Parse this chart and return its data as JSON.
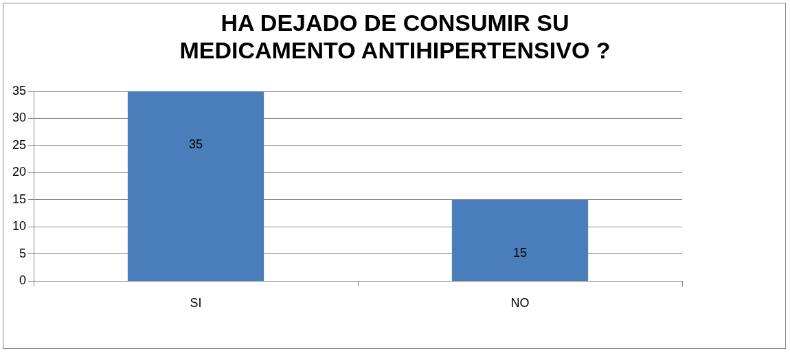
{
  "chart_data": {
    "type": "bar",
    "title": "HA DEJADO DE CONSUMIR SU MEDICAMENTO ANTIHIPERTENSIVO ?",
    "categories": [
      "SI",
      "NO"
    ],
    "values": [
      35,
      15
    ],
    "color": "#4a7ebb",
    "ylim": [
      0,
      35
    ],
    "yticks": [
      0,
      5,
      10,
      15,
      20,
      25,
      30,
      35
    ],
    "grid": "y",
    "data_labels": true
  }
}
